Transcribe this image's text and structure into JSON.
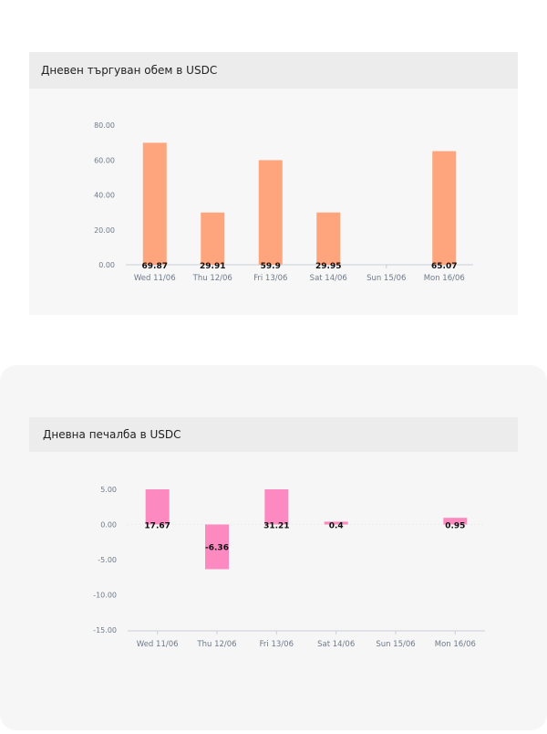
{
  "chart_data": [
    {
      "type": "bar",
      "title": "Дневен търгуван обем в USDC",
      "categories": [
        "Wed 11/06",
        "Thu 12/06",
        "Fri 13/06",
        "Sat 14/06",
        "Sun 15/06",
        "Mon 16/06"
      ],
      "values": [
        69.87,
        29.91,
        59.9,
        29.95,
        0,
        65.07
      ],
      "data_labels": [
        "69.87",
        "29.91",
        "59.9",
        "29.95",
        "",
        "65.07"
      ],
      "ylim": [
        0,
        80
      ],
      "yticks": [
        0,
        20,
        40,
        60,
        80
      ],
      "ytick_labels": [
        "0.00",
        "20.00",
        "40.00",
        "60.00",
        "80.00"
      ],
      "color": "#ffa57d",
      "grid": false
    },
    {
      "type": "bar",
      "title": "Дневна печалба в USDC",
      "categories": [
        "Wed 11/06",
        "Thu 12/06",
        "Fri 13/06",
        "Sat 14/06",
        "Sun 15/06",
        "Mon 16/06"
      ],
      "values": [
        17.67,
        -6.36,
        31.21,
        0.4,
        0,
        0.95
      ],
      "data_labels": [
        "17.67",
        "-6.36",
        "31.21",
        "0.4",
        "",
        "0.95"
      ],
      "ylim": [
        -15,
        5
      ],
      "yticks": [
        -15,
        -10,
        -5,
        0,
        5
      ],
      "ytick_labels": [
        "-15.00",
        "-10.00",
        "-5.00",
        "0.00",
        "5.00"
      ],
      "color": "#fc89bf",
      "grid": false
    }
  ]
}
